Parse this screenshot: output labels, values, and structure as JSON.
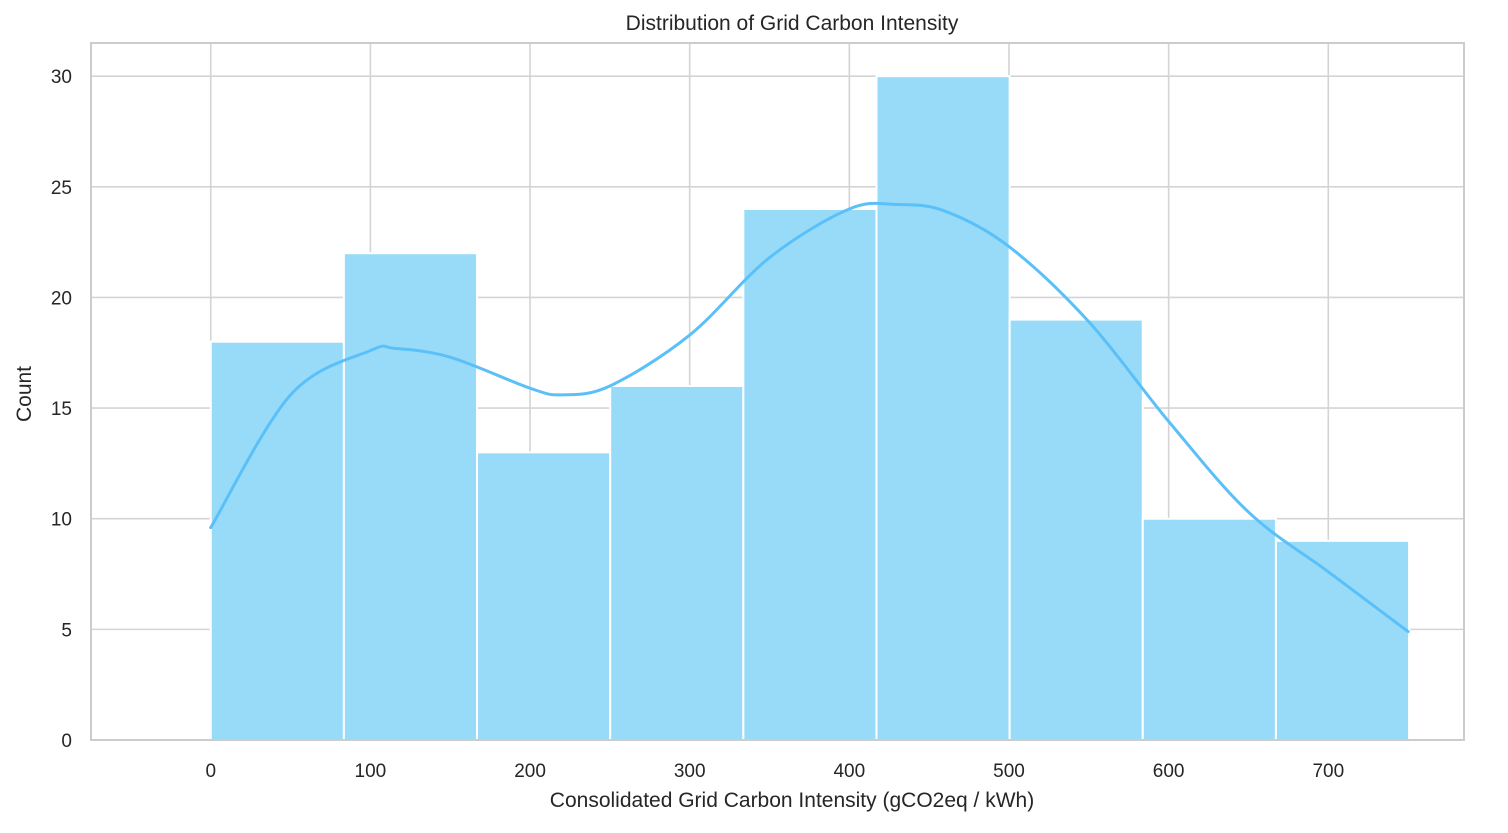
{
  "chart_data": {
    "type": "bar",
    "subtype": "histogram_with_kde",
    "title": "Distribution of Grid Carbon Intensity",
    "xlabel": "Consolidated Grid Carbon Intensity (gCO2eq / kWh)",
    "ylabel": "Count",
    "bin_edges": [
      0,
      83.4,
      166.8,
      250.2,
      333.6,
      417.0,
      500.4,
      583.8,
      667.2,
      750.6
    ],
    "values": [
      18,
      22,
      13,
      16,
      24,
      30,
      19,
      10,
      9
    ],
    "kde": {
      "x": [
        0,
        50,
        100,
        115,
        150,
        200,
        220,
        250,
        300,
        350,
        400,
        430,
        460,
        500,
        550,
        600,
        650,
        700,
        750
      ],
      "y": [
        9.6,
        15.6,
        17.6,
        17.7,
        17.3,
        15.9,
        15.6,
        16.0,
        18.3,
        21.8,
        24.0,
        24.2,
        23.9,
        22.3,
        18.9,
        14.4,
        10.3,
        7.6,
        4.9
      ]
    },
    "xticks": [
      0,
      100,
      200,
      300,
      400,
      500,
      600,
      700
    ],
    "yticks": [
      0,
      5,
      10,
      15,
      20,
      25,
      30
    ],
    "xlim": [
      -75,
      785
    ],
    "ylim": [
      0,
      31.5
    ],
    "grid": true,
    "colors": {
      "bar_fill": "#98dbf9",
      "bar_edge": "#ffffff",
      "kde_line": "#5bc0f8",
      "grid": "#d4d4d4",
      "axes_edge": "#cccccc"
    }
  }
}
